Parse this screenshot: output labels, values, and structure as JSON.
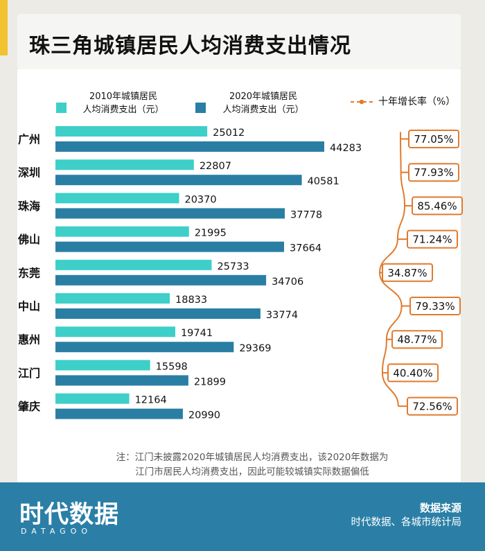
{
  "title": "珠三角城镇居民人均消费支出情况",
  "legend": {
    "series1": "2010年城镇居民人均消费支出（元）",
    "series1_line1": "2010年城镇居民",
    "series1_line2": "人均消费支出（元）",
    "series2": "2020年城镇居民人均消费支出（元）",
    "series2_line1": "2020年城镇居民",
    "series2_line2": "人均消费支出（元）",
    "growth": "十年增长率（%）"
  },
  "colors": {
    "series1": "#3ecfc9",
    "series2": "#2a7ea3",
    "growth": "#e07a2e",
    "footer": "#2b7fa6",
    "accent": "#f2c230"
  },
  "chart_data": {
    "type": "bar",
    "orientation": "horizontal",
    "categories": [
      "广州",
      "深圳",
      "珠海",
      "佛山",
      "东莞",
      "中山",
      "惠州",
      "江门",
      "肇庆"
    ],
    "series": [
      {
        "name": "2010年城镇居民人均消费支出（元）",
        "values": [
          25012,
          22807,
          20370,
          21995,
          25733,
          18833,
          19741,
          15598,
          12164
        ]
      },
      {
        "name": "2020年城镇居民人均消费支出（元）",
        "values": [
          44283,
          40581,
          37778,
          37664,
          34706,
          33774,
          29369,
          21899,
          20990
        ]
      },
      {
        "name": "十年增长率（%）",
        "values": [
          77.05,
          77.93,
          85.46,
          71.24,
          34.87,
          79.33,
          48.77,
          40.4,
          72.56
        ]
      }
    ],
    "value_labels": [
      "25012",
      "44283",
      "22807",
      "40581",
      "20370",
      "37778",
      "21995",
      "37664",
      "25733",
      "34706",
      "18833",
      "33774",
      "19741",
      "29369",
      "15598",
      "21899",
      "12164",
      "20990"
    ],
    "growth_labels": [
      "77.05%",
      "77.93%",
      "85.46%",
      "71.24%",
      "34.87%",
      "79.33%",
      "48.77%",
      "40.40%",
      "72.56%"
    ],
    "xlim": [
      0,
      44283
    ]
  },
  "note": {
    "line1": "注：江门未披露2020年城镇居民人均消费支出，该2020年数据为",
    "line2": "江门市居民人均消费支出，因此可能较城镇实际数据偏低"
  },
  "footer": {
    "logo": "时代数据",
    "logo_sub": "DATAGOO",
    "source_title": "数据来源",
    "source_text": "时代数据、各城市统计局"
  }
}
